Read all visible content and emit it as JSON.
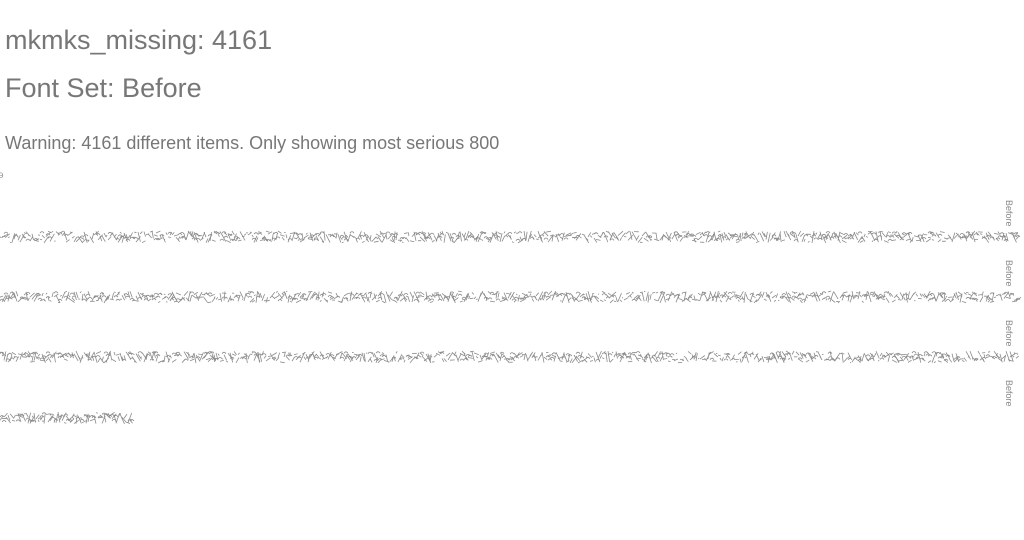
{
  "header": {
    "title": "mkmks_missing: 4161",
    "font_set": "Font Set: Before",
    "warning": "Warning: 4161 different items. Only showing most serious 800"
  },
  "rows": [
    {
      "label": "Before",
      "fill": 1.0
    },
    {
      "label": "Before",
      "fill": 1.0
    },
    {
      "label": "Before",
      "fill": 1.0
    },
    {
      "label": "Before",
      "fill": 0.13
    }
  ],
  "colors": {
    "text": "#777777",
    "glyphs": "#8a8a8a"
  }
}
